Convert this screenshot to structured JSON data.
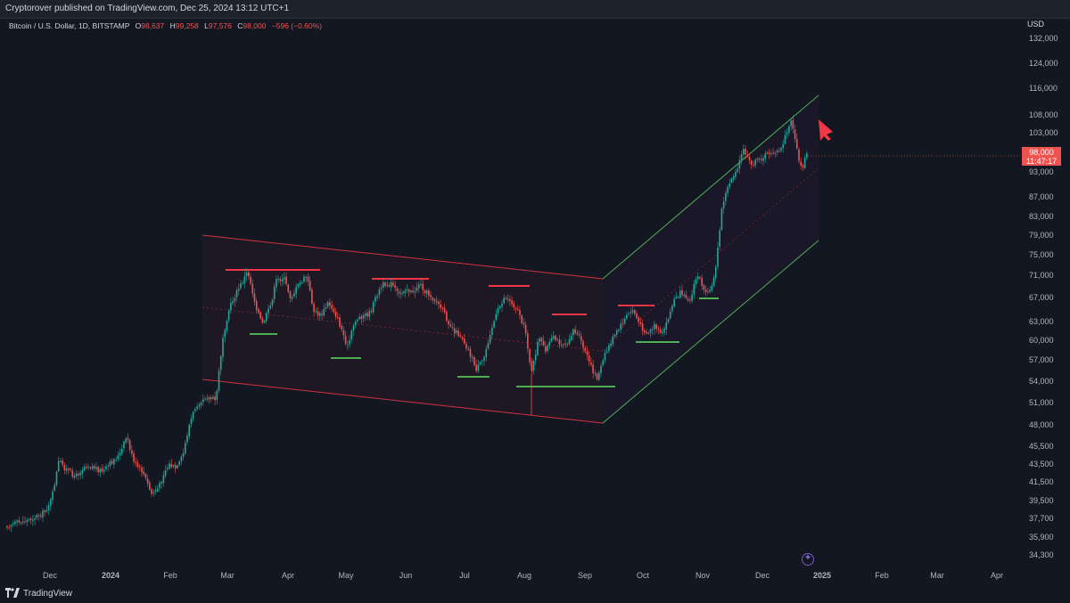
{
  "header": {
    "published": "Cryptorover published on TradingView.com, Dec 25, 2024 13:12 UTC+1"
  },
  "symbol": {
    "name": "Bitcoin / U.S. Dollar, 1D, BITSTAMP",
    "o_label": "O",
    "o_value": "98,637",
    "h_label": "H",
    "h_value": "99,258",
    "l_label": "L",
    "l_value": "97,576",
    "c_label": "C",
    "c_value": "98,000",
    "change": "−596 (−0.60%)"
  },
  "price_axis": {
    "currency": "USD",
    "labels": [
      "132,000",
      "124,000",
      "116,000",
      "108,000",
      "103,000",
      "93,000",
      "87,000",
      "83,000",
      "79,000",
      "75,000",
      "71,000",
      "67,000",
      "63,000",
      "60,000",
      "57,000",
      "54,000",
      "51,000",
      "48,000",
      "45,500",
      "43,500",
      "41,500",
      "39,500",
      "37,700",
      "35,900",
      "34,300"
    ]
  },
  "time_axis": {
    "labels": [
      "Dec",
      "2024",
      "Feb",
      "Mar",
      "Apr",
      "May",
      "Jun",
      "Jul",
      "Aug",
      "Sep",
      "Oct",
      "Nov",
      "Dec",
      "2025",
      "Feb",
      "Mar",
      "Apr"
    ]
  },
  "last_price": {
    "value": "98,000",
    "countdown": "11:47:17"
  },
  "footer": {
    "brand": "TradingView"
  },
  "colors": {
    "up": "#26a69a",
    "up_bright": "#22ab3c",
    "down": "#ef5350",
    "channel_down": "#f23645",
    "channel_up": "#4caf50",
    "background": "#131722"
  }
}
